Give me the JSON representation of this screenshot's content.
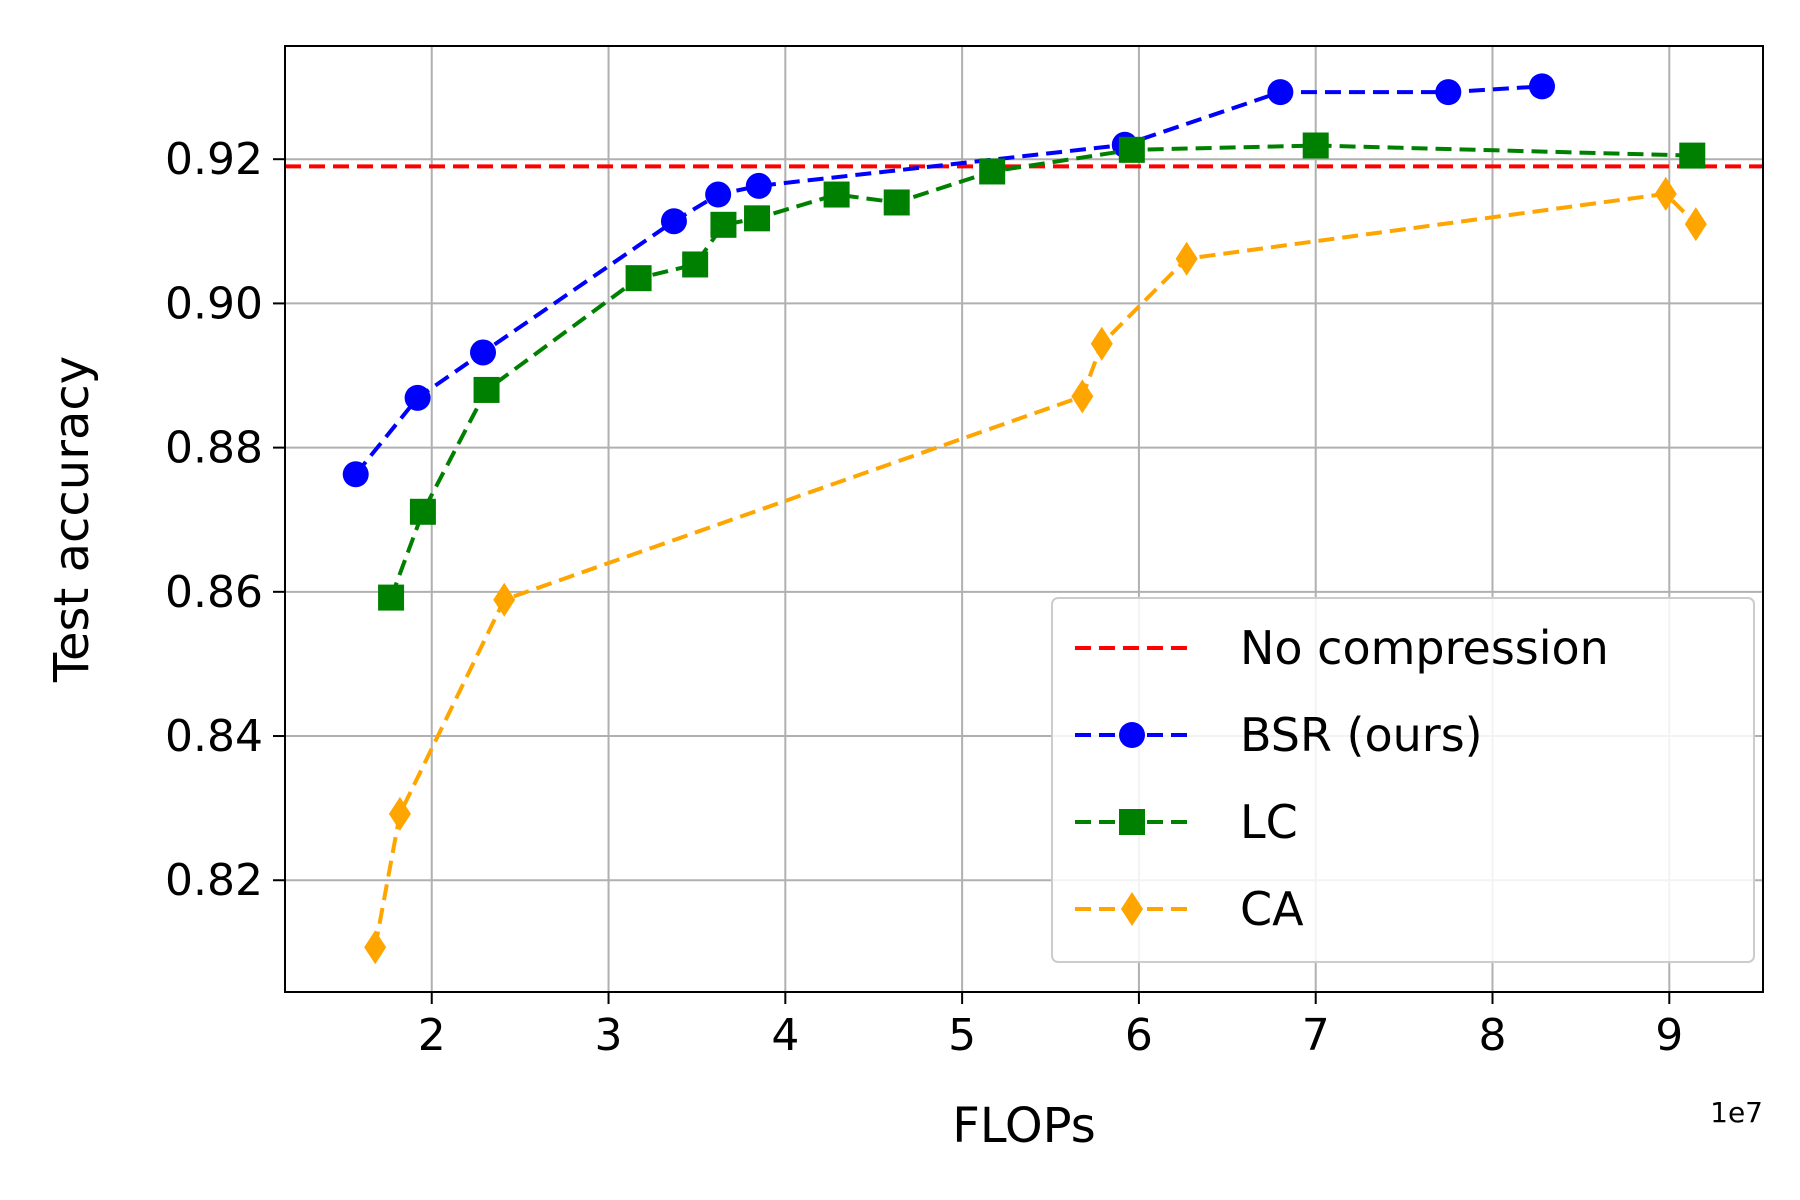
{
  "chart_data": {
    "type": "line",
    "xlabel": "FLOPs",
    "ylabel": "Test accuracy",
    "x_scale_label": "1e7",
    "xlim": [
      1.17,
      9.53
    ],
    "ylim": [
      0.8045,
      0.9357
    ],
    "x_ticks": [
      2,
      3,
      4,
      5,
      6,
      7,
      8,
      9
    ],
    "y_ticks": [
      0.82,
      0.84,
      0.86,
      0.88,
      0.9,
      0.92
    ],
    "y_tick_labels": [
      "0.82",
      "0.84",
      "0.86",
      "0.88",
      "0.90",
      "0.92"
    ],
    "grid": true,
    "legend_position": "lower-right",
    "reference_lines": [
      {
        "name": "No compression",
        "y": 0.919,
        "color": "#ff0000",
        "style": "dashed"
      }
    ],
    "series": [
      {
        "name": "BSR (ours)",
        "color": "#0000ff",
        "marker": "circle",
        "style": "dashed",
        "x": [
          1.57,
          1.92,
          2.29,
          3.37,
          3.62,
          3.85,
          5.92,
          6.8,
          7.75,
          8.28
        ],
        "y": [
          0.8763,
          0.8869,
          0.8932,
          0.9114,
          0.9151,
          0.9163,
          0.922,
          0.9293,
          0.9293,
          0.9301
        ]
      },
      {
        "name": "LC",
        "color": "#008000",
        "marker": "square",
        "style": "dashed",
        "x": [
          1.77,
          1.95,
          2.31,
          3.17,
          3.49,
          3.65,
          3.84,
          4.29,
          4.63,
          5.17,
          5.96,
          7.0,
          9.13
        ],
        "y": [
          0.8592,
          0.8711,
          0.888,
          0.9035,
          0.9054,
          0.9109,
          0.9118,
          0.9151,
          0.914,
          0.9183,
          0.9213,
          0.9219,
          0.9205
        ]
      },
      {
        "name": "CA",
        "color": "#ffa500",
        "marker": "diamond",
        "style": "dashed",
        "x": [
          1.68,
          1.82,
          2.41,
          5.68,
          5.79,
          6.27,
          8.98,
          9.15
        ],
        "y": [
          0.8107,
          0.8292,
          0.8589,
          0.8871,
          0.8944,
          0.9062,
          0.9152,
          0.911
        ]
      }
    ]
  }
}
